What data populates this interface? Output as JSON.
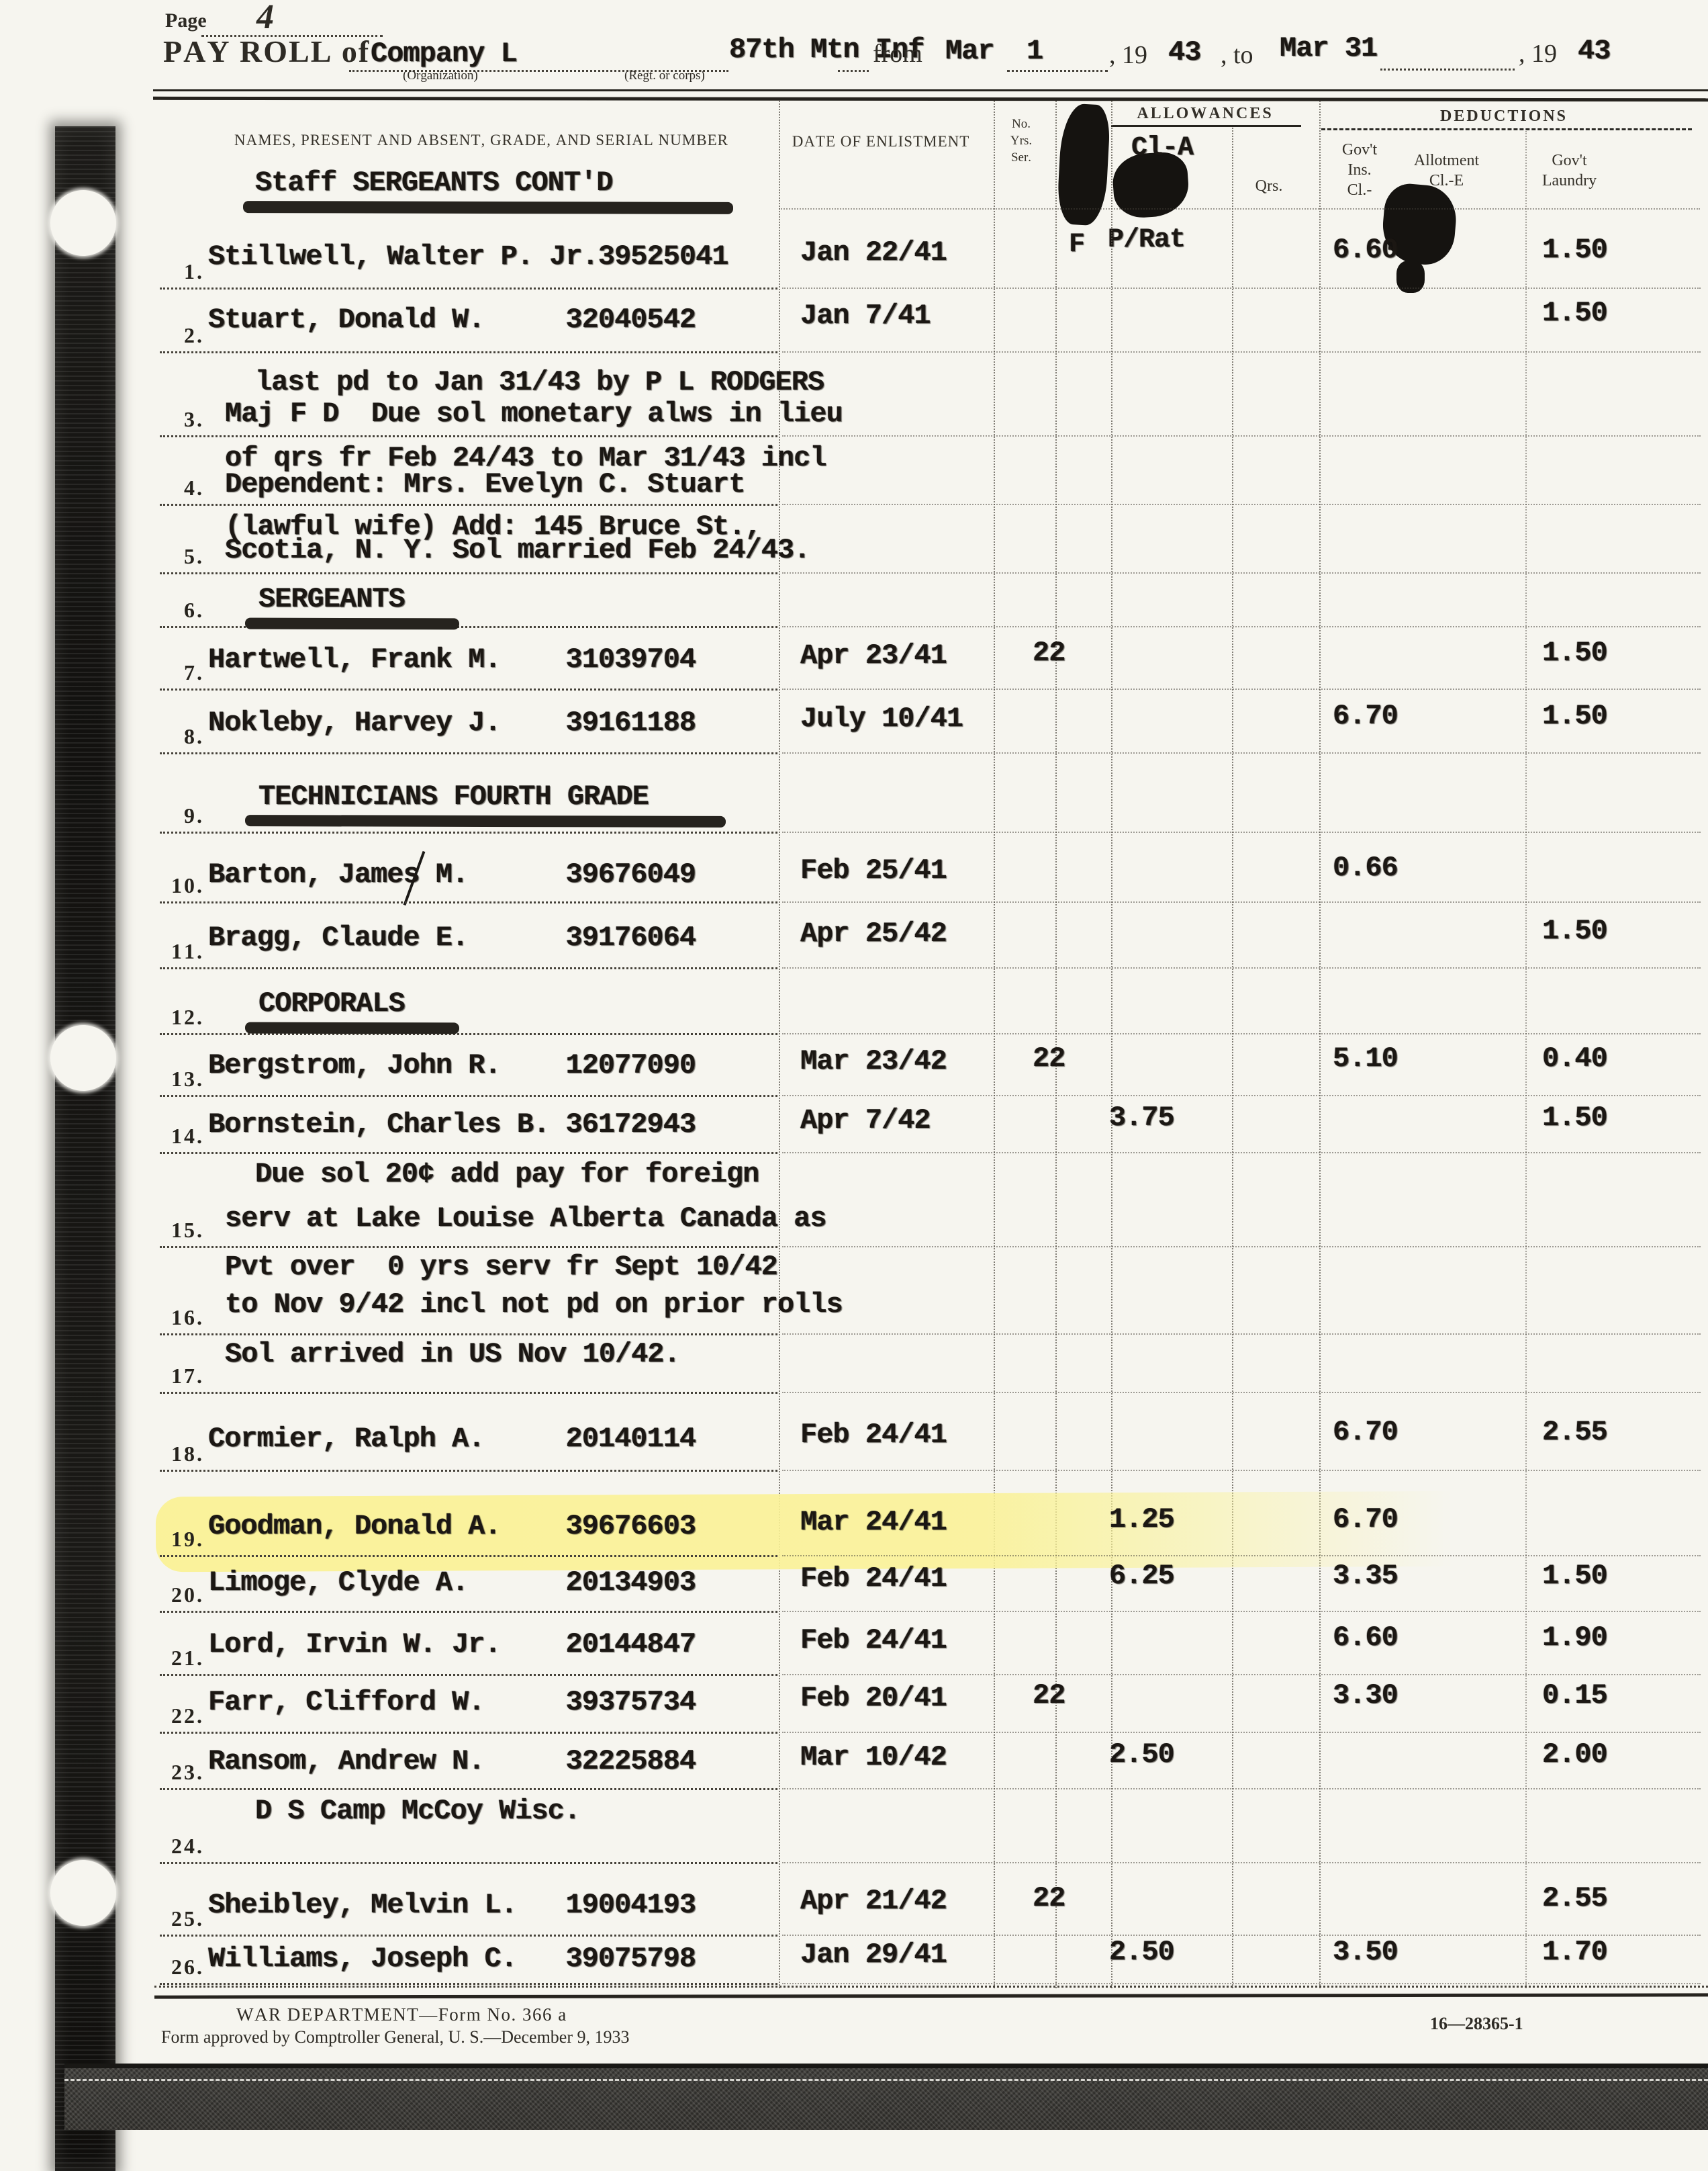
{
  "header": {
    "page_label": "Page",
    "page_number": "4",
    "payroll_of": "PAY ROLL of",
    "organization": "Company L",
    "organization_caption": "(Organization)",
    "regiment": "87th Mtn Inf",
    "regiment_caption": "(Regt. or corps)",
    "from_label": "from",
    "from_date": "Mar  1",
    "year1_prefix": ", 19",
    "year1": "43",
    "to_label": ", to",
    "to_date": "Mar 31",
    "year2_prefix": ", 19",
    "year2": "43"
  },
  "columns": {
    "names": "NAMES, PRESENT AND ABSENT, GRADE, AND SERIAL NUMBER",
    "date_of_enlistment": "DATE OF ENLISTMENT",
    "no_yrs_ser": [
      "No.",
      "Yrs.",
      "Ser."
    ],
    "col4_stamp": "F",
    "allowances": "ALLOWANCES",
    "cl_a_stamp": "Cl-A",
    "cl_a_sub": "P/Rat",
    "qrs": "Qrs.",
    "deductions": "DEDUCTIONS",
    "govt_ins_lines": [
      "Gov't",
      "Ins.",
      "Cl.-"
    ],
    "allotment_lines": [
      "Allotment",
      "Cl.-E"
    ],
    "laundry_lines": [
      "Gov't",
      "Laundry"
    ]
  },
  "section_heading": "Staff SERGEANTS CONT'D",
  "table": {
    "rows": [
      {
        "num": "1",
        "kind": "entry",
        "name": "Stillwell, Walter P. Jr.39525041",
        "date": "Jan 22/41",
        "ins": "6.60",
        "laundry": "1.50"
      },
      {
        "num": "2",
        "kind": "entry",
        "name": "Stuart, Donald W.     32040542",
        "date": "Jan 7/41",
        "laundry": "1.50",
        "note": "last pd to Jan 31/43 by P L RODGERS"
      },
      {
        "num": "3",
        "kind": "note2",
        "line1": "Maj F D  Due sol monetary alws in lieu",
        "line2": "of qrs fr Feb 24/43 to Mar 31/43 incl"
      },
      {
        "num": "4",
        "kind": "note2",
        "line1": "Dependent: Mrs. Evelyn C. Stuart",
        "line2": "(lawful wife) Add: 145 Bruce St.,"
      },
      {
        "num": "5",
        "kind": "note1",
        "line1": "Scotia, N. Y. Sol married Feb 24/43."
      },
      {
        "num": "6",
        "kind": "section",
        "label": "SERGEANTS"
      },
      {
        "num": "7",
        "kind": "entry",
        "name": "Hartwell, Frank M.    31039704",
        "date": "Apr 23/41",
        "yrs": "22",
        "laundry": "1.50"
      },
      {
        "num": "8",
        "kind": "entry",
        "name": "Nokleby, Harvey J.    39161188",
        "date": "July 10/41",
        "ins": "6.70",
        "laundry": "1.50"
      },
      {
        "num": "9",
        "kind": "section",
        "label": "TECHNICIANS FOURTH GRADE"
      },
      {
        "num": "10",
        "kind": "entry",
        "name": "Barton, James M.      39676049",
        "date": "Feb 25/41",
        "ins": "0.66"
      },
      {
        "num": "11",
        "kind": "entry",
        "name": "Bragg, Claude E.      39176064",
        "date": "Apr 25/42",
        "laundry": "1.50"
      },
      {
        "num": "12",
        "kind": "section",
        "label": "CORPORALS"
      },
      {
        "num": "13",
        "kind": "entry",
        "name": "Bergstrom, John R.    12077090",
        "date": "Mar 23/42",
        "yrs": "22",
        "ins": "5.10",
        "laundry": "0.40"
      },
      {
        "num": "14",
        "kind": "entry",
        "name": "Bornstein, Charles B. 36172943",
        "date": "Apr 7/42",
        "cla": "3.75",
        "laundry": "1.50",
        "note": "Due sol 20¢ add pay for foreign"
      },
      {
        "num": "15",
        "kind": "note2",
        "line1": "serv at Lake Louise Alberta Canada as",
        "line2": "Pvt over  0 yrs serv fr Sept 10/42"
      },
      {
        "num": "16",
        "kind": "note2",
        "line1": "to Nov 9/42 incl not pd on prior rolls",
        "line2": "Sol arrived in US Nov 10/42."
      },
      {
        "num": "17",
        "kind": "blank"
      },
      {
        "num": "18",
        "kind": "entry",
        "name": "Cormier, Ralph A.     20140114",
        "date": "Feb 24/41",
        "ins": "6.70",
        "laundry": "2.55"
      },
      {
        "num": "19",
        "kind": "entry",
        "highlight": true,
        "name": "Goodman, Donald A.    39676603",
        "date": "Mar 24/41",
        "cla": "1.25",
        "ins": "6.70"
      },
      {
        "num": "20",
        "kind": "entry",
        "name": "Limoge, Clyde A.      20134903",
        "date": "Feb 24/41",
        "cla": "6.25",
        "ins": "3.35",
        "laundry": "1.50"
      },
      {
        "num": "21",
        "kind": "entry",
        "name": "Lord, Irvin W. Jr.    20144847",
        "date": "Feb 24/41",
        "ins": "6.60",
        "laundry": "1.90"
      },
      {
        "num": "22",
        "kind": "entry",
        "name": "Farr, Clifford W.     39375734",
        "date": "Feb 20/41",
        "yrs": "22",
        "ins": "3.30",
        "laundry": "0.15"
      },
      {
        "num": "23",
        "kind": "entry",
        "name": "Ransom, Andrew N.     32225884",
        "date": "Mar 10/42",
        "cla": "2.50",
        "laundry": "2.00",
        "note": "D S Camp McCoy Wisc."
      },
      {
        "num": "24",
        "kind": "blank"
      },
      {
        "num": "25",
        "kind": "entry",
        "name": "Sheibley, Melvin L.   19004193",
        "date": "Apr 21/42",
        "yrs": "22",
        "laundry": "2.55"
      },
      {
        "num": "26",
        "kind": "entry",
        "name": "Williams, Joseph C.   39075798",
        "date": "Jan 29/41",
        "cla": "2.50",
        "ins": "3.50",
        "laundry": "1.70"
      }
    ]
  },
  "footer": {
    "form_line1": "WAR DEPARTMENT—Form No. 366 a",
    "form_line2": "Form approved by Comptroller General, U. S.—December 9, 1933",
    "print_code": "16—28365-1"
  }
}
